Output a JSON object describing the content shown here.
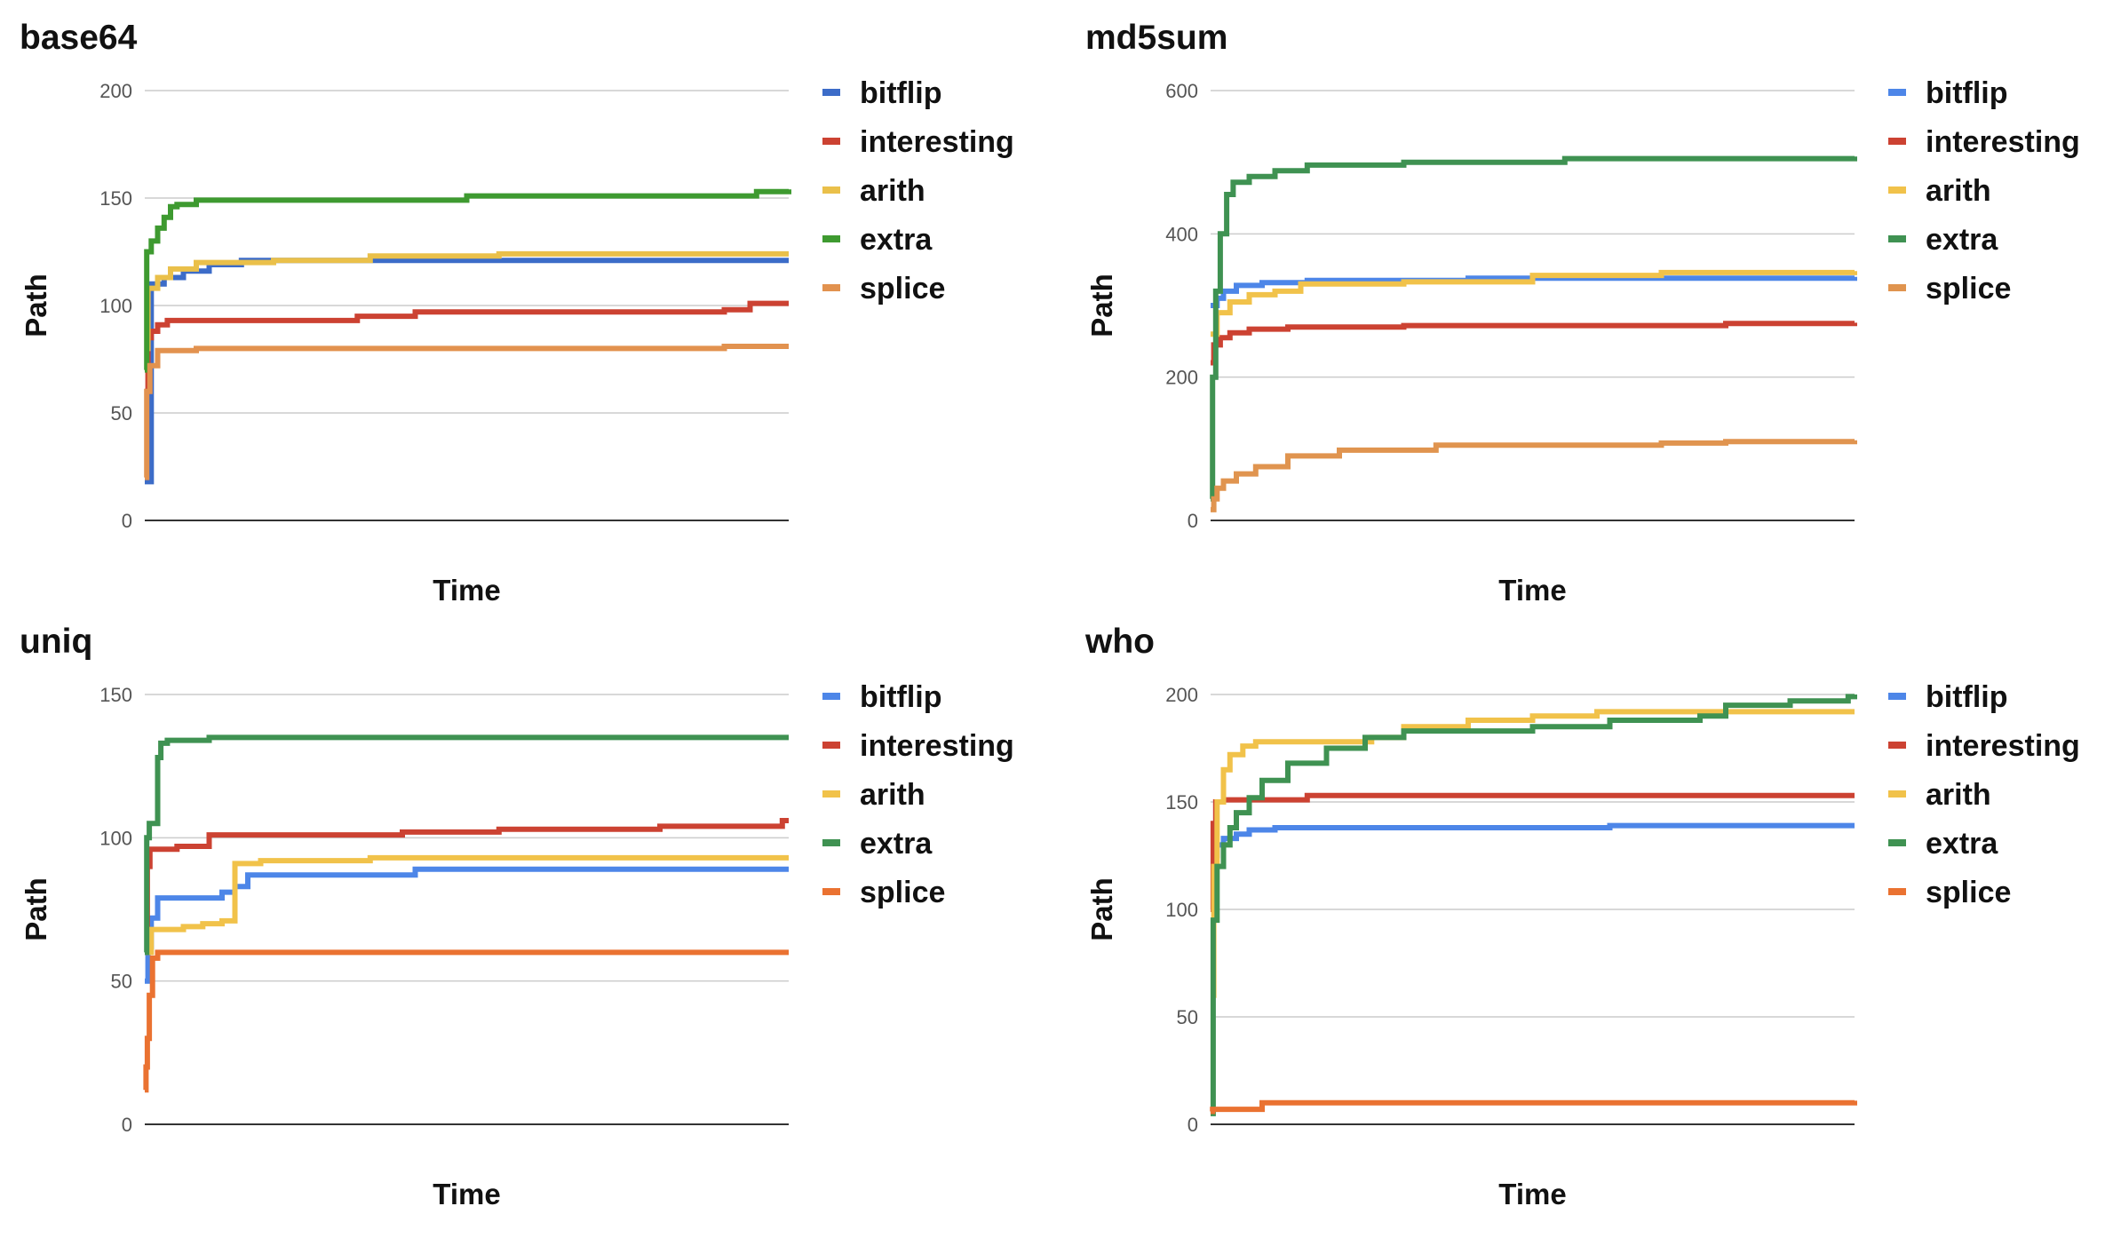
{
  "chart_data": [
    {
      "type": "line",
      "title": "base64",
      "xlabel": "Time",
      "ylabel": "Path",
      "ylim": [
        0,
        200
      ],
      "yticks": [
        0,
        50,
        100,
        150,
        200
      ],
      "grid": true,
      "legend": "right",
      "step": true,
      "series": [
        {
          "name": "bitflip",
          "color": "#3c6cc8",
          "x": [
            0,
            0.01,
            0.03,
            0.06,
            0.1,
            0.15,
            1.0
          ],
          "y": [
            18,
            110,
            113,
            116,
            119,
            121,
            121
          ]
        },
        {
          "name": "interesting",
          "color": "#cc4232",
          "x": [
            0,
            0.005,
            0.01,
            0.02,
            0.035,
            0.33,
            0.42,
            0.9,
            0.94,
            1.0
          ],
          "y": [
            60,
            85,
            88,
            91,
            93,
            95,
            97,
            98,
            101,
            101
          ]
        },
        {
          "name": "arith",
          "color": "#eac04a",
          "x": [
            0,
            0.005,
            0.02,
            0.04,
            0.08,
            0.2,
            0.35,
            0.55,
            1.0
          ],
          "y": [
            80,
            108,
            113,
            117,
            120,
            121,
            123,
            124,
            124
          ]
        },
        {
          "name": "extra",
          "color": "#3e9a30",
          "x": [
            0,
            0.003,
            0.01,
            0.02,
            0.03,
            0.04,
            0.05,
            0.08,
            0.5,
            0.95,
            1.0
          ],
          "y": [
            70,
            125,
            130,
            136,
            141,
            146,
            147,
            149,
            151,
            153,
            154
          ]
        },
        {
          "name": "splice",
          "color": "#e2924f",
          "x": [
            0,
            0.003,
            0.008,
            0.02,
            0.08,
            0.5,
            0.9,
            1.0
          ],
          "y": [
            20,
            60,
            72,
            79,
            80,
            80,
            81,
            81
          ]
        }
      ]
    },
    {
      "type": "line",
      "title": "md5sum",
      "xlabel": "Time",
      "ylabel": "Path",
      "ylim": [
        0,
        600
      ],
      "yticks": [
        0,
        200,
        400,
        600
      ],
      "grid": true,
      "legend": "right",
      "step": true,
      "series": [
        {
          "name": "bitflip",
          "color": "#4d86e8",
          "x": [
            0,
            0.01,
            0.02,
            0.04,
            0.08,
            0.15,
            0.4,
            1.0
          ],
          "y": [
            300,
            310,
            320,
            328,
            332,
            335,
            338,
            340
          ]
        },
        {
          "name": "interesting",
          "color": "#cc4232",
          "x": [
            0,
            0.005,
            0.015,
            0.03,
            0.06,
            0.12,
            0.3,
            0.8,
            1.0
          ],
          "y": [
            220,
            245,
            255,
            262,
            267,
            270,
            272,
            275,
            276
          ]
        },
        {
          "name": "arith",
          "color": "#f1c24a",
          "x": [
            0,
            0.01,
            0.03,
            0.06,
            0.1,
            0.14,
            0.3,
            0.5,
            0.7,
            1.0
          ],
          "y": [
            260,
            290,
            305,
            315,
            320,
            330,
            333,
            342,
            346,
            348
          ]
        },
        {
          "name": "extra",
          "color": "#3f9252",
          "x": [
            0,
            0.003,
            0.008,
            0.015,
            0.025,
            0.035,
            0.06,
            0.1,
            0.15,
            0.3,
            0.55,
            1.0
          ],
          "y": [
            30,
            200,
            320,
            400,
            455,
            472,
            480,
            488,
            496,
            500,
            505,
            508
          ]
        },
        {
          "name": "splice",
          "color": "#e0944f",
          "x": [
            0,
            0.005,
            0.01,
            0.02,
            0.04,
            0.07,
            0.12,
            0.2,
            0.35,
            0.7,
            0.8,
            1.0
          ],
          "y": [
            15,
            30,
            45,
            55,
            65,
            75,
            90,
            98,
            105,
            108,
            110,
            112
          ]
        }
      ]
    },
    {
      "type": "line",
      "title": "uniq",
      "xlabel": "Time",
      "ylabel": "Path",
      "ylim": [
        0,
        150
      ],
      "yticks": [
        0,
        50,
        100,
        150
      ],
      "grid": true,
      "legend": "right",
      "step": true,
      "series": [
        {
          "name": "bitflip",
          "color": "#4d86e8",
          "x": [
            0,
            0.005,
            0.01,
            0.02,
            0.12,
            0.14,
            0.16,
            0.42,
            1.0
          ],
          "y": [
            50,
            62,
            72,
            79,
            81,
            83,
            87,
            89,
            89
          ]
        },
        {
          "name": "interesting",
          "color": "#cc4232",
          "x": [
            0,
            0.004,
            0.008,
            0.05,
            0.1,
            0.4,
            0.55,
            0.8,
            0.99,
            1.0
          ],
          "y": [
            60,
            90,
            96,
            97,
            101,
            102,
            103,
            104,
            106,
            106
          ]
        },
        {
          "name": "arith",
          "color": "#f1c24a",
          "x": [
            0,
            0.01,
            0.06,
            0.09,
            0.12,
            0.14,
            0.18,
            0.35,
            1.0
          ],
          "y": [
            60,
            68,
            69,
            70,
            71,
            91,
            92,
            93,
            93
          ]
        },
        {
          "name": "extra",
          "color": "#3f9252",
          "x": [
            0,
            0.003,
            0.007,
            0.02,
            0.025,
            0.035,
            0.1,
            1.0
          ],
          "y": [
            60,
            100,
            105,
            128,
            133,
            134,
            135,
            135
          ]
        },
        {
          "name": "splice",
          "color": "#ea7231",
          "x": [
            0,
            0.002,
            0.004,
            0.007,
            0.012,
            0.02,
            1.0
          ],
          "y": [
            12,
            20,
            30,
            45,
            58,
            60,
            60
          ]
        }
      ]
    },
    {
      "type": "line",
      "title": "who",
      "xlabel": "Time",
      "ylabel": "Path",
      "ylim": [
        0,
        200
      ],
      "yticks": [
        0,
        50,
        100,
        150,
        200
      ],
      "grid": true,
      "legend": "right",
      "step": true,
      "series": [
        {
          "name": "bitflip",
          "color": "#4d86e8",
          "x": [
            0,
            0.005,
            0.01,
            0.02,
            0.04,
            0.06,
            0.1,
            0.3,
            0.62,
            1.0
          ],
          "y": [
            100,
            125,
            130,
            133,
            135,
            137,
            138,
            138,
            139,
            139
          ]
        },
        {
          "name": "interesting",
          "color": "#cc4232",
          "x": [
            0,
            0.004,
            0.008,
            0.02,
            0.15,
            0.5,
            1.0
          ],
          "y": [
            100,
            140,
            150,
            151,
            153,
            153,
            153
          ]
        },
        {
          "name": "arith",
          "color": "#f1c24a",
          "x": [
            0,
            0.005,
            0.01,
            0.02,
            0.03,
            0.05,
            0.07,
            0.2,
            0.25,
            0.3,
            0.4,
            0.5,
            0.6,
            1.0
          ],
          "y": [
            60,
            120,
            150,
            165,
            172,
            176,
            178,
            178,
            180,
            185,
            188,
            190,
            192,
            192
          ]
        },
        {
          "name": "extra",
          "color": "#3f9252",
          "x": [
            0,
            0.004,
            0.01,
            0.02,
            0.03,
            0.04,
            0.06,
            0.08,
            0.12,
            0.18,
            0.24,
            0.3,
            0.5,
            0.62,
            0.76,
            0.8,
            0.9,
            0.99,
            1.0
          ],
          "y": [
            5,
            95,
            120,
            130,
            138,
            145,
            152,
            160,
            168,
            175,
            180,
            183,
            185,
            188,
            190,
            195,
            197,
            199,
            200
          ]
        },
        {
          "name": "splice",
          "color": "#ea7231",
          "x": [
            0,
            0.003,
            0.075,
            0.08,
            0.67,
            1.0
          ],
          "y": [
            6,
            7,
            7,
            10,
            10,
            11
          ]
        }
      ]
    }
  ]
}
